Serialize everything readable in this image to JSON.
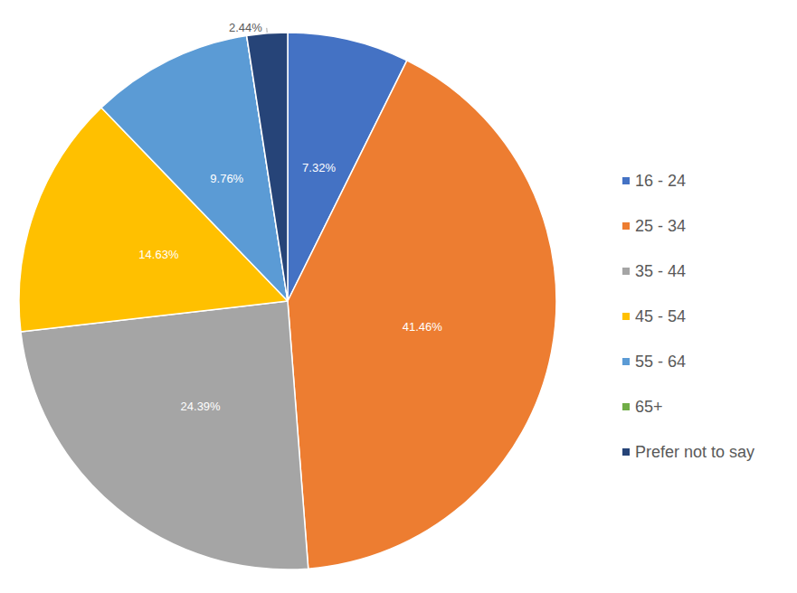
{
  "chart_data": {
    "type": "pie",
    "categories": [
      "16 - 24",
      "25 - 34",
      "35 - 44",
      "45 - 54",
      "55 - 64",
      "65+",
      "Prefer not to say"
    ],
    "values": [
      7.32,
      41.46,
      24.39,
      14.63,
      9.76,
      0,
      2.44
    ],
    "value_labels": [
      "7.32%",
      "41.46%",
      "24.39%",
      "14.63%",
      "9.76%",
      null,
      "2.44%"
    ],
    "colors": [
      "#4472c4",
      "#ed7d31",
      "#a5a5a5",
      "#ffc000",
      "#5b9bd5",
      "#70ad47",
      "#264478"
    ],
    "data_labels": true,
    "legend": "right"
  }
}
